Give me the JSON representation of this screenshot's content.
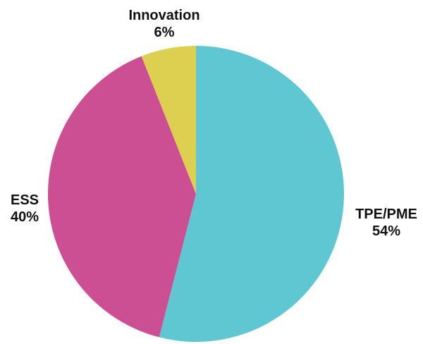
{
  "chart_data": {
    "type": "pie",
    "title": "",
    "start_angle_deg": 0,
    "direction": "clockwise",
    "legend": "none",
    "slices": [
      {
        "label": "TPE/PME",
        "value": 54,
        "value_label": "54%",
        "color": "#5EC7D2"
      },
      {
        "label": "ESS",
        "value": 40,
        "value_label": "40%",
        "color": "#CC4E93"
      },
      {
        "label": "Innovation",
        "value": 6,
        "value_label": "6%",
        "color": "#DDD050"
      }
    ]
  }
}
